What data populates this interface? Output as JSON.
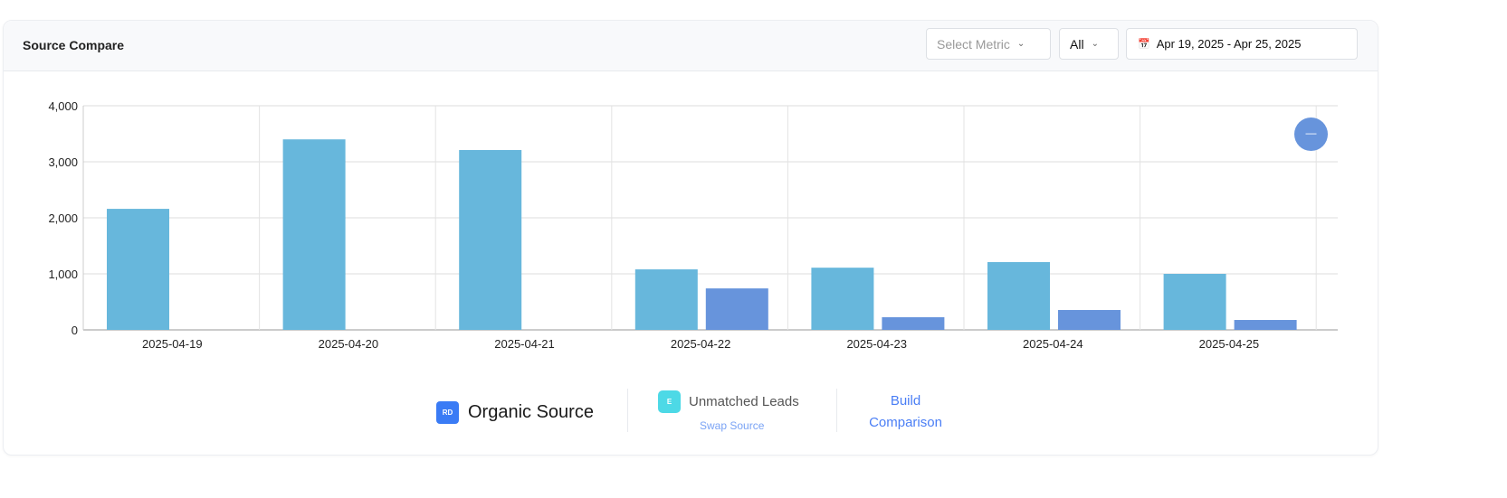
{
  "header": {
    "title": "Source Compare",
    "metric_placeholder": "Select Metric",
    "filter_value": "All",
    "date_range": "Apr 19, 2025 - Apr 25, 2025"
  },
  "zoom_button": {
    "label": "—"
  },
  "legend": {
    "primary": {
      "badge": "RD",
      "label": "Organic Source"
    },
    "secondary": {
      "badge": "E",
      "label": "Unmatched Leads",
      "action": "Swap Source"
    },
    "build": {
      "line1": "Build",
      "line2": "Comparison"
    }
  },
  "colors": {
    "series1": "#67b7dc",
    "series2": "#6794dc",
    "badge1": "#3a7bf5",
    "badge2": "#4dd9e6",
    "link": "#4a7ef5"
  },
  "chart_data": {
    "type": "bar",
    "title": "Source Compare",
    "categories": [
      "2025-04-19",
      "2025-04-20",
      "2025-04-21",
      "2025-04-22",
      "2025-04-23",
      "2025-04-24",
      "2025-04-25"
    ],
    "series": [
      {
        "name": "Organic Source",
        "values": [
          2160,
          3400,
          3210,
          1080,
          1110,
          1210,
          1000
        ]
      },
      {
        "name": "Unmatched Leads",
        "values": [
          0,
          0,
          0,
          740,
          226,
          355,
          177
        ]
      }
    ],
    "yticks": [
      "0",
      "1,000",
      "2,000",
      "3,000",
      "4,000"
    ],
    "ylim": [
      0,
      4000
    ],
    "xlabel": "",
    "ylabel": "",
    "grid": true
  }
}
